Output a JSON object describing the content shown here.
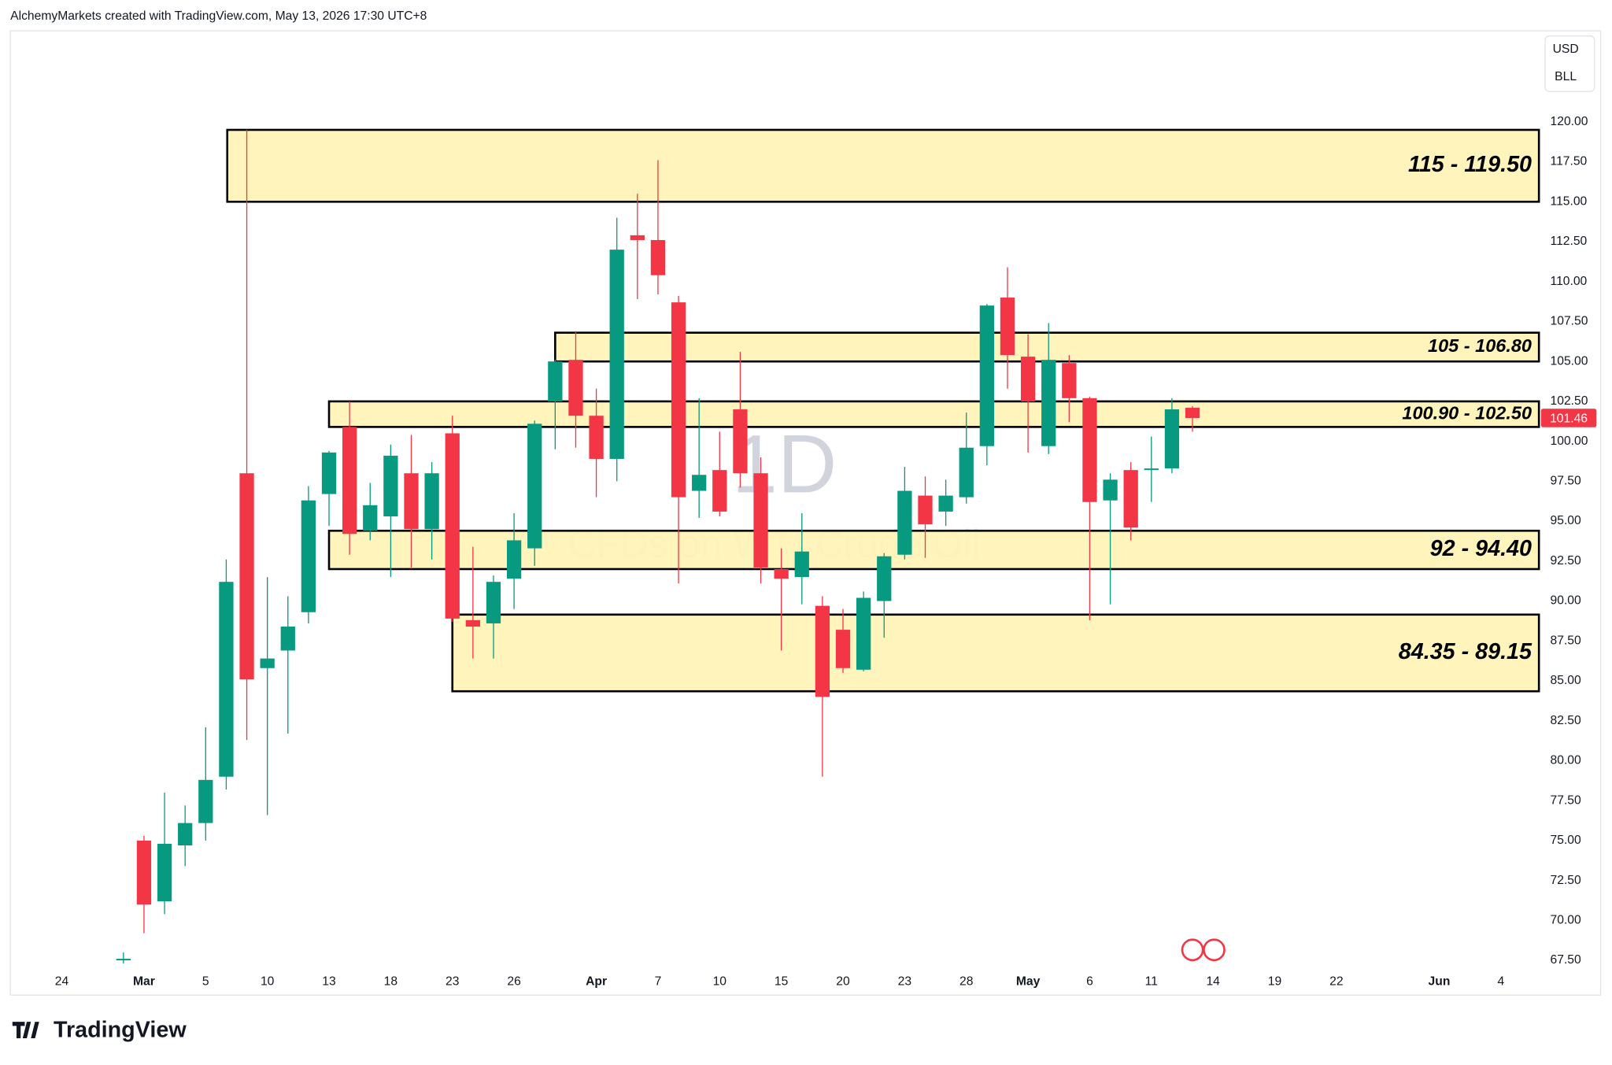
{
  "header": {
    "attribution": "AlchemyMarkets created with TradingView.com, May 13, 2026 17:30 UTC+8",
    "logo": "TradingView"
  },
  "chart_data": {
    "type": "candlestick",
    "currency": "USD",
    "unit": "BLL",
    "watermark": {
      "interval": "1D",
      "symbol": "CFDs on WTI Crude Oil"
    },
    "categories": [
      "24",
      null,
      null,
      null,
      "Mar",
      null,
      null,
      "5",
      null,
      null,
      "10",
      null,
      null,
      "13",
      null,
      null,
      "18",
      null,
      null,
      "23",
      null,
      null,
      "26",
      null,
      null,
      null,
      "Apr",
      null,
      null,
      "7",
      null,
      null,
      "10",
      null,
      null,
      "15",
      null,
      null,
      "20",
      null,
      null,
      "23",
      null,
      null,
      "28",
      null,
      null,
      "May",
      null,
      null,
      "6",
      null,
      null,
      "11",
      null,
      null,
      "14",
      null,
      null,
      "19",
      null,
      null,
      "22",
      null,
      null,
      null,
      null,
      "Jun",
      null,
      null,
      "4"
    ],
    "open": [
      null,
      null,
      null,
      67.6,
      75.0,
      71.2,
      74.7,
      76.1,
      79.0,
      98.0,
      85.8,
      86.9,
      89.3,
      96.7,
      100.9,
      94.4,
      95.3,
      98.0,
      94.5,
      100.5,
      88.8,
      88.6,
      91.4,
      93.3,
      102.5,
      105.1,
      101.6,
      98.9,
      112.9,
      112.6,
      108.7,
      96.9,
      98.2,
      102.0,
      98.0,
      92.0,
      91.5,
      89.7,
      88.2,
      85.7,
      90.0,
      92.9,
      96.6,
      95.6,
      96.5,
      99.7,
      109.0,
      105.3,
      99.7,
      104.9,
      102.7,
      96.3,
      98.2,
      98.2,
      98.3,
      102.1,
      null,
      null,
      null,
      null,
      null,
      null,
      null,
      null,
      null,
      null,
      null,
      null,
      null,
      null,
      null
    ],
    "high": [
      null,
      null,
      null,
      68.0,
      75.3,
      78.0,
      77.2,
      82.1,
      92.6,
      119.5,
      91.5,
      90.3,
      97.2,
      99.4,
      102.5,
      97.4,
      99.8,
      100.4,
      98.7,
      101.6,
      93.4,
      91.6,
      95.5,
      101.3,
      105.1,
      106.9,
      103.3,
      114.0,
      115.5,
      117.6,
      109.1,
      102.7,
      100.6,
      105.6,
      99.0,
      93.3,
      95.5,
      90.3,
      89.5,
      90.6,
      93.0,
      98.4,
      97.8,
      97.6,
      101.8,
      108.6,
      110.9,
      106.7,
      107.4,
      105.4,
      102.8,
      98.0,
      98.7,
      100.3,
      102.7,
      102.2,
      null,
      null,
      null,
      null,
      null,
      null,
      null,
      null,
      null,
      null,
      null,
      null,
      null,
      null,
      null
    ],
    "low": [
      null,
      null,
      null,
      67.3,
      69.2,
      70.4,
      73.4,
      75.0,
      78.2,
      81.3,
      76.6,
      81.7,
      88.6,
      94.7,
      92.9,
      93.8,
      91.5,
      92.1,
      92.6,
      88.7,
      86.4,
      86.4,
      89.5,
      92.2,
      99.5,
      99.6,
      96.5,
      97.5,
      108.9,
      109.2,
      91.1,
      95.2,
      95.3,
      97.1,
      91.1,
      86.9,
      89.8,
      79.0,
      85.5,
      85.6,
      87.7,
      92.6,
      92.7,
      94.7,
      96.1,
      98.5,
      103.3,
      99.3,
      99.2,
      101.2,
      88.8,
      89.8,
      93.8,
      96.2,
      98.0,
      100.6,
      null,
      null,
      null,
      null,
      null,
      null,
      null,
      null,
      null,
      null,
      null,
      null,
      null,
      null,
      null
    ],
    "close": [
      null,
      null,
      null,
      67.6,
      71.0,
      74.8,
      76.1,
      78.8,
      91.2,
      85.1,
      86.4,
      88.4,
      96.3,
      99.3,
      94.2,
      96.0,
      99.1,
      94.5,
      98.0,
      88.9,
      88.4,
      91.2,
      93.8,
      101.1,
      105.0,
      101.6,
      98.9,
      112.0,
      112.6,
      110.4,
      96.5,
      97.9,
      95.6,
      98.0,
      92.1,
      91.4,
      93.1,
      84.0,
      85.8,
      90.2,
      92.8,
      96.9,
      94.8,
      96.6,
      99.6,
      108.5,
      105.4,
      102.5,
      105.1,
      102.7,
      96.2,
      97.6,
      94.6,
      98.3,
      102.0,
      101.46,
      null,
      null,
      null,
      null,
      null,
      null,
      null,
      null,
      null,
      null,
      null,
      null,
      null,
      null,
      null
    ],
    "up_color": "#089981",
    "down_color": "#f23645",
    "zones": [
      {
        "label": "115 - 119.50",
        "low": 115,
        "high": 119.5
      },
      {
        "label": "105 - 106.80",
        "low": 105,
        "high": 106.8
      },
      {
        "label": "100.90 - 102.50",
        "low": 100.9,
        "high": 102.5
      },
      {
        "label": "92 - 94.40",
        "low": 92,
        "high": 94.4
      },
      {
        "label": "84.35 - 89.15",
        "low": 84.35,
        "high": 89.15
      }
    ],
    "zone_color": "#fff3b0",
    "ylim": [
      67,
      125.7
    ],
    "yticks": [
      {
        "value": 67.5,
        "label": "67.50"
      },
      {
        "value": 70,
        "label": "70.00"
      },
      {
        "value": 72.5,
        "label": "72.50"
      },
      {
        "value": 75,
        "label": "75.00"
      },
      {
        "value": 77.5,
        "label": "77.50"
      },
      {
        "value": 80,
        "label": "80.00"
      },
      {
        "value": 82.5,
        "label": "82.50"
      },
      {
        "value": 85,
        "label": "85.00"
      },
      {
        "value": 87.5,
        "label": "87.50"
      },
      {
        "value": 90,
        "label": "90.00"
      },
      {
        "value": 92.5,
        "label": "92.50"
      },
      {
        "value": 95,
        "label": "95.00"
      },
      {
        "value": 97.5,
        "label": "97.50"
      },
      {
        "value": 100,
        "label": "100.00"
      },
      {
        "value": 102.5,
        "label": "102.50"
      },
      {
        "value": 105,
        "label": "105.00"
      },
      {
        "value": 107.5,
        "label": "107.50"
      },
      {
        "value": 110,
        "label": "110.00"
      },
      {
        "value": 112.5,
        "label": "112.50"
      },
      {
        "value": 115,
        "label": "115.00"
      },
      {
        "value": 117.5,
        "label": "117.50"
      },
      {
        "value": 120,
        "label": "120.00"
      }
    ],
    "grid": false
  }
}
